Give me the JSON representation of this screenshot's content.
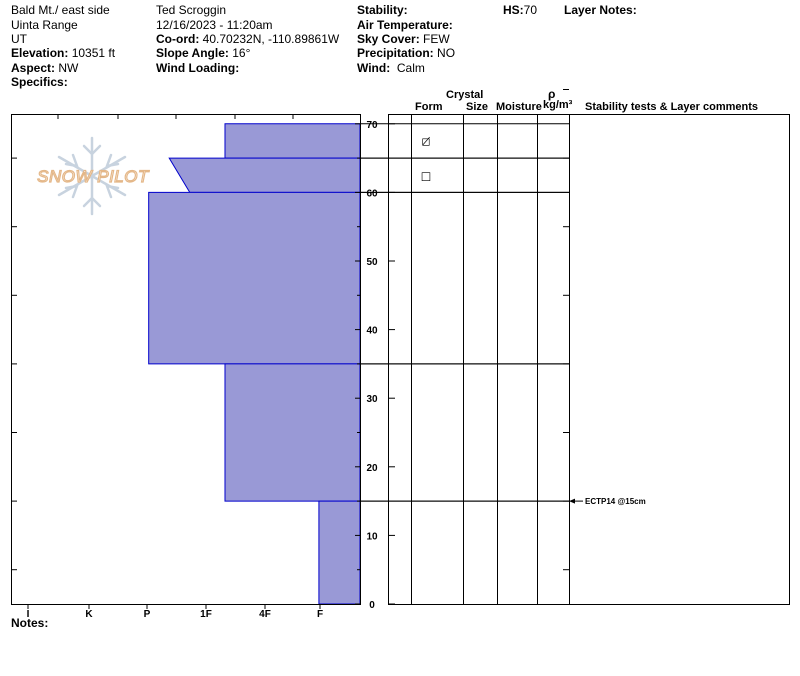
{
  "header": {
    "location": "Bald Mt./ east side",
    "range": "Uinta Range",
    "state": "UT",
    "elevation_label": "Elevation:",
    "elevation_value": "10351 ft",
    "aspect_label": "Aspect:",
    "aspect_value": "NW",
    "specifics_label": "Specifics:",
    "observer": "Ted Scroggin",
    "datetime": "12/16/2023 - 11:20am",
    "coord_label": "Co-ord:",
    "coord_value": "40.70232N, -110.89861W",
    "slope_label": "Slope Angle:",
    "slope_value": "16°",
    "wind_loading_label": "Wind Loading:",
    "stability_label": "Stability:",
    "air_temp_label": "Air Temperature:",
    "sky_label": "Sky Cover:",
    "sky_value": "FEW",
    "precip_label": "Precipitation:",
    "precip_value": "NO",
    "wind_label": "Wind:",
    "wind_value": "Calm",
    "hs_label": "HS:",
    "hs_value": "70",
    "layer_notes_label": "Layer Notes:"
  },
  "watermark": "SNOW PILOT",
  "columns": {
    "crystal": "Crystal",
    "form": "Form",
    "size": "Size",
    "moisture": "Moisture",
    "rho": "ρ",
    "density_unit": "kg/m³",
    "stability": "Stability tests & Layer comments"
  },
  "notes_label": "Notes:",
  "test_annotation": {
    "depth": 15,
    "text": "ECTP14 @15cm"
  },
  "colors": {
    "hardness_fill": "#9999d6",
    "hardness_stroke": "#0000cc"
  },
  "chart_data": {
    "type": "bar",
    "hardness_scale": [
      "I",
      "K",
      "P",
      "1F",
      "4F",
      "F"
    ],
    "y_ticks": [
      0,
      10,
      20,
      30,
      40,
      50,
      60,
      70
    ],
    "ylim": [
      0,
      72
    ],
    "layers": [
      {
        "top": 70,
        "bottom": 65,
        "hardness_top": 2.3,
        "hardness_bottom": 2.3,
        "form": "◻̸"
      },
      {
        "top": 65,
        "bottom": 60,
        "hardness_top": 3.25,
        "hardness_bottom": 2.9,
        "form": "□"
      },
      {
        "top": 60,
        "bottom": 35,
        "hardness_top": 3.6,
        "hardness_bottom": 3.6,
        "form": ""
      },
      {
        "top": 35,
        "bottom": 15,
        "hardness_top": 2.3,
        "hardness_bottom": 2.3,
        "form": ""
      },
      {
        "top": 15,
        "bottom": 0,
        "hardness_top": 0.7,
        "hardness_bottom": 0.7,
        "form": ""
      }
    ]
  }
}
